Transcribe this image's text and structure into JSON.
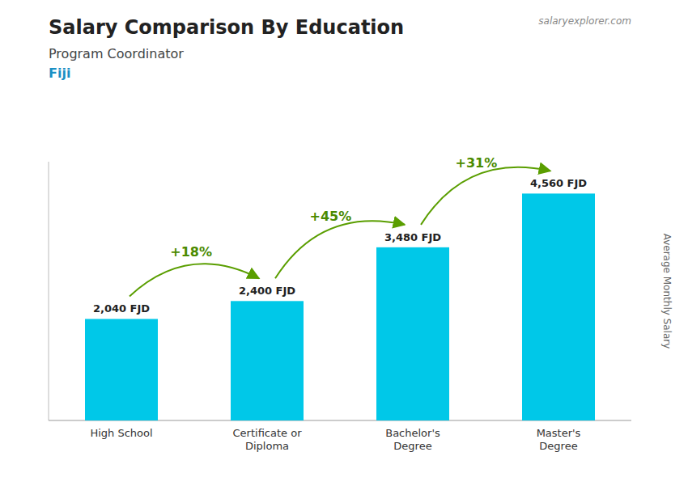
{
  "chart_data": {
    "type": "bar",
    "title": "Salary Comparison By Education",
    "subtitle": "Program Coordinator",
    "country": "Fiji",
    "watermark": "salaryexplorer.com",
    "y_label": "Average Monthly Salary",
    "categories": [
      "High School",
      "Certificate or\nDiploma",
      "Bachelor's\nDegree",
      "Master's\nDegree"
    ],
    "values": [
      2040,
      2400,
      3480,
      4560
    ],
    "value_labels": [
      "2,040 FJD",
      "2,400 FJD",
      "3,480 FJD",
      "4,560 FJD"
    ],
    "data_labels": true,
    "annotations": [
      "+18%",
      "+45%",
      "+31%"
    ],
    "color": "#00c8e8",
    "ylim": [
      0,
      5200
    ],
    "tick_labels": "x",
    "grid": false
  }
}
